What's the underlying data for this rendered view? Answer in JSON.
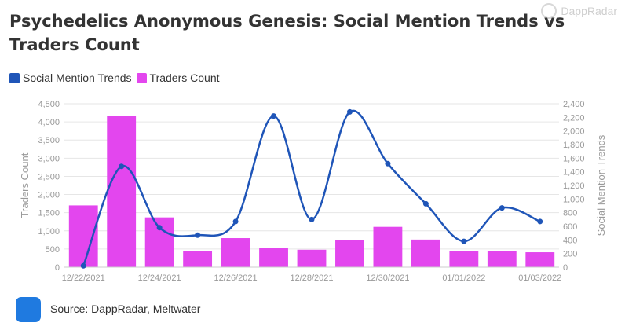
{
  "title": "Psychedelics Anonymous Genesis: Social Mention Trends vs Traders Count",
  "watermark": "DappRadar",
  "source": "Source: DappRadar, Meltwater",
  "colors": {
    "line": "#1f55b8",
    "bar": "#e346ee",
    "grid": "#e6e6e6",
    "axis_text": "#999999"
  },
  "chart_data": {
    "type": "bar",
    "categories": [
      "12/22/2021",
      "12/23/2021",
      "12/24/2021",
      "12/25/2021",
      "12/26/2021",
      "12/27/2021",
      "12/28/2021",
      "12/29/2021",
      "12/30/2021",
      "12/31/2021",
      "01/01/2022",
      "01/02/2022",
      "01/03/2022"
    ],
    "x_tick_labels": [
      "12/22/2021",
      "",
      "12/24/2021",
      "",
      "12/26/2021",
      "",
      "12/28/2021",
      "",
      "12/30/2021",
      "",
      "01/01/2022",
      "",
      "01/03/2022"
    ],
    "series": [
      {
        "name": "Traders Count",
        "type": "bar",
        "axis": "left",
        "color": "#e346ee",
        "values": [
          1700,
          4160,
          1370,
          450,
          800,
          540,
          480,
          750,
          1110,
          760,
          450,
          450,
          410
        ]
      },
      {
        "name": "Social Mention Trends",
        "type": "line",
        "axis": "right",
        "color": "#1f55b8",
        "values": [
          20,
          1480,
          580,
          470,
          670,
          2220,
          700,
          2280,
          1520,
          930,
          380,
          870,
          670
        ]
      }
    ],
    "ylabel": "Traders Count",
    "y2label": "Social Mention Trends",
    "ylim": [
      0,
      4500
    ],
    "y2lim": [
      0,
      2400
    ],
    "yticks": [
      "0",
      "500",
      "1,000",
      "1,500",
      "2,000",
      "2,500",
      "3,000",
      "3,500",
      "4,000",
      "4,500"
    ],
    "y2ticks": [
      "0",
      "200",
      "400",
      "600",
      "800",
      "1,000",
      "1,200",
      "1,400",
      "1,600",
      "1,800",
      "2,000",
      "2,200",
      "2,400"
    ],
    "grid": true,
    "legend": "top-left"
  }
}
